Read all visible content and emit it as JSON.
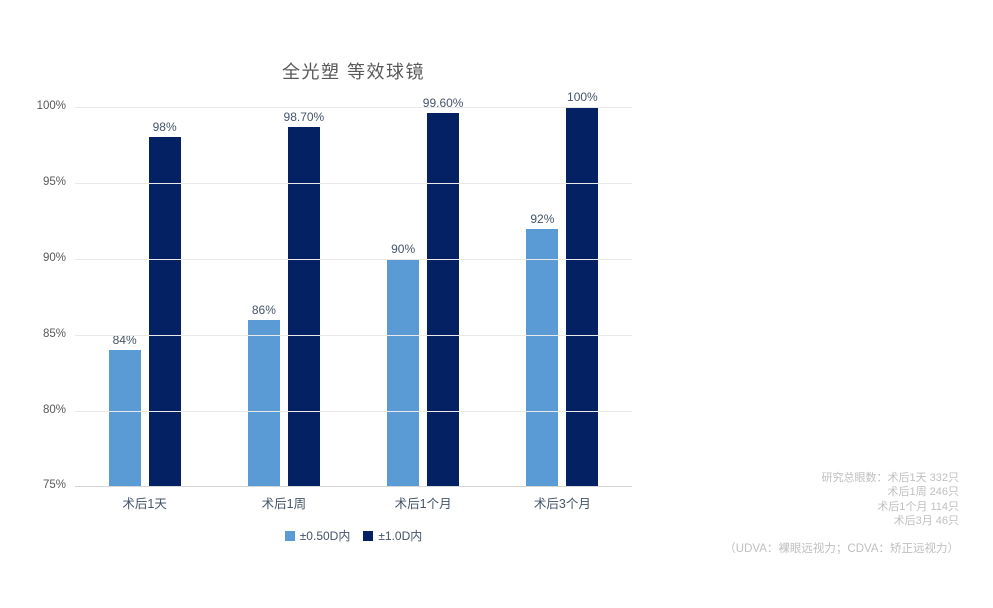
{
  "chart_data": {
    "type": "bar",
    "title": "全光塑 等效球镜",
    "categories": [
      "术后1天",
      "术后1周",
      "术后1个月",
      "术后3个月"
    ],
    "series": [
      {
        "name": "±0.50D内",
        "color": "#5b9bd5",
        "values": [
          84,
          86,
          90,
          92
        ],
        "labels": [
          "84%",
          "86%",
          "90%",
          "92%"
        ]
      },
      {
        "name": "±1.0D内",
        "color": "#032163",
        "values": [
          98,
          98.7,
          99.6,
          100
        ],
        "labels": [
          "98%",
          "98.70%",
          "99.60%",
          "100%"
        ]
      }
    ],
    "ylim": [
      75,
      100
    ],
    "ytick_step": 5,
    "ytick_labels": [
      "75%",
      "80%",
      "85%",
      "90%",
      "95%",
      "100%"
    ],
    "grid": true,
    "legend_position": "bottom"
  },
  "annotation": {
    "lines": [
      "研究总眼数：术后1天 332只",
      "术后1周 246只",
      "术后1个月 114只",
      "术后3月 46只"
    ],
    "footnote": "（UDVA：裸眼远视力；CDVA：矫正远视力）"
  }
}
